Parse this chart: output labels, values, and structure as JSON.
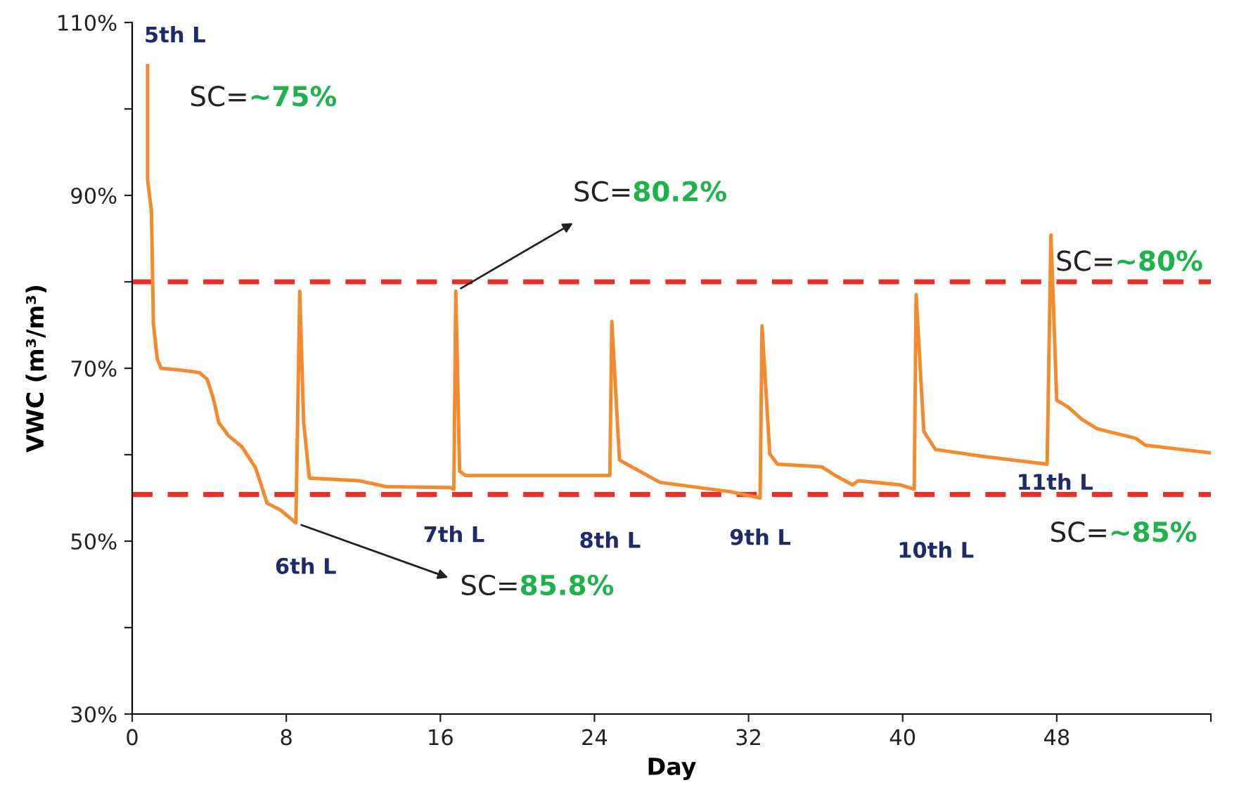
{
  "chart_data": {
    "type": "line",
    "xlabel": "Day",
    "ylabel": "VWC (m³/m³)",
    "xlim": [
      0,
      56
    ],
    "xticks": [
      0,
      8,
      16,
      24,
      32,
      40,
      48,
      {
        "value": 56,
        "label": null
      }
    ],
    "ylim": [
      30,
      110
    ],
    "yticks": [
      {
        "value": 30,
        "label": "30%"
      },
      {
        "value": 40,
        "label": null
      },
      {
        "value": 50,
        "label": "50%"
      },
      {
        "value": 60,
        "label": null
      },
      {
        "value": 70,
        "label": "70%"
      },
      {
        "value": 80,
        "label": null
      },
      {
        "value": 90,
        "label": "90%"
      },
      {
        "value": 100,
        "label": null
      },
      {
        "value": 110,
        "label": "110%"
      }
    ],
    "grid": false,
    "legend": false,
    "marker": "none",
    "line_style": "solid",
    "series": [
      {
        "color": "#f28a30",
        "x": [
          0.8,
          0.8,
          1.0,
          1.1,
          1.3,
          1.5,
          2.5,
          3.5,
          3.9,
          4.2,
          4.5,
          5.0,
          5.7,
          6.4,
          6.7,
          7.0,
          7.7,
          8.5,
          8.7,
          8.9,
          9.2,
          11.75,
          13.2,
          16.5,
          16.7,
          16.8,
          17.0,
          17.3,
          24.8,
          24.9,
          25.3,
          25.6,
          27.4,
          31.1,
          32.6,
          32.7,
          33.1,
          33.5,
          35.8,
          36.5,
          37.4,
          37.7,
          39.9,
          40.6,
          40.7,
          41.1,
          41.7,
          44.2,
          47.5,
          47.7,
          48.0,
          48.6,
          49.3,
          50.1,
          52.1,
          52.6,
          54.5,
          56.0
        ],
        "values": [
          105.0,
          91.8,
          88.2,
          75.2,
          71.1,
          70.0,
          69.8,
          69.5,
          68.7,
          66.6,
          63.7,
          62.2,
          60.9,
          58.5,
          56.5,
          54.4,
          53.6,
          52.1,
          78.9,
          63.8,
          57.3,
          57.0,
          56.3,
          56.2,
          56.0,
          78.9,
          58.1,
          57.6,
          57.6,
          75.4,
          59.4,
          59.0,
          56.8,
          55.7,
          55.0,
          74.9,
          60.1,
          58.9,
          58.6,
          57.6,
          56.5,
          57.0,
          56.5,
          56.0,
          78.5,
          62.7,
          60.6,
          59.8,
          58.9,
          85.4,
          66.3,
          65.5,
          64.1,
          63.0,
          61.9,
          61.1,
          60.6,
          60.2
        ]
      }
    ],
    "ref_lines": [
      {
        "axis": "y",
        "value": 80,
        "color": "#e8302a",
        "line_style": "dashed"
      },
      {
        "axis": "y",
        "value": 55.4,
        "color": "#e8302a",
        "line_style": "dashed"
      }
    ],
    "annotations": [
      {
        "text": "5th L",
        "x": 0.8,
        "y": 105.0
      },
      "SC=~75%",
      {
        "text": "6th L",
        "x": 8.5,
        "y": 52.1
      },
      {
        "text": "SC=85.8%",
        "x": 8.5,
        "y": 52.1
      },
      {
        "text": "7th L",
        "x": 16.7,
        "y": 56.0
      },
      {
        "text": "8th L",
        "x": 24.8,
        "y": 57.6
      },
      {
        "text": "9th L",
        "x": 32.6,
        "y": 55.0
      },
      {
        "text": "10th L",
        "x": 40.6,
        "y": 56.0
      },
      {
        "text": "11th L",
        "x": 47.5,
        "y": 58.9
      },
      {
        "text": "SC=80.2%",
        "x": 16.8,
        "y": 78.9
      },
      "SC=~80%",
      "SC=~85%"
    ]
  }
}
